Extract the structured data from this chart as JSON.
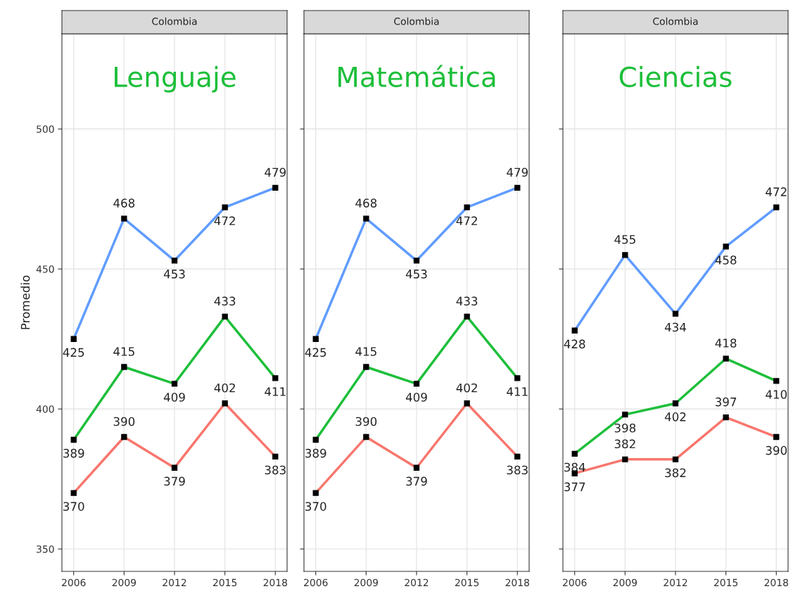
{
  "chart_data": [
    {
      "type": "line",
      "title": "Colombia",
      "subtitle": "Lenguaje",
      "ylabel": "Promedio",
      "x": [
        2006,
        2009,
        2012,
        2015,
        2018
      ],
      "xlim": [
        2005.3,
        2018.7
      ],
      "xticks": [
        2006,
        2009,
        2012,
        2015,
        2018
      ],
      "ylim": [
        342,
        534
      ],
      "yticks": [
        350,
        400,
        450,
        500
      ],
      "grid": true,
      "marker": "square",
      "data_labels": true,
      "series": [
        {
          "color": "#619cff",
          "values": [
            425,
            468,
            453,
            472,
            479
          ]
        },
        {
          "color": "#1dbf3a",
          "values": [
            389,
            415,
            409,
            433,
            411
          ]
        },
        {
          "color": "#f8766d",
          "values": [
            370,
            390,
            379,
            402,
            383
          ]
        }
      ]
    },
    {
      "type": "line",
      "title": "Colombia",
      "subtitle": "Matemática",
      "x": [
        2006,
        2009,
        2012,
        2015,
        2018
      ],
      "xlim": [
        2005.3,
        2018.7
      ],
      "xticks": [
        2006,
        2009,
        2012,
        2015,
        2018
      ],
      "ylim": [
        342,
        534
      ],
      "yticks": [
        350,
        400,
        450,
        500
      ],
      "tick_labels": "x",
      "grid": true,
      "marker": "square",
      "data_labels": true,
      "series": [
        {
          "color": "#619cff",
          "values": [
            425,
            468,
            453,
            472,
            479
          ]
        },
        {
          "color": "#1dbf3a",
          "values": [
            389,
            415,
            409,
            433,
            411
          ]
        },
        {
          "color": "#f8766d",
          "values": [
            370,
            390,
            379,
            402,
            383
          ]
        }
      ]
    },
    {
      "type": "line",
      "title": "Colombia",
      "subtitle": "Ciencias",
      "x": [
        2006,
        2009,
        2012,
        2015,
        2018
      ],
      "xlim": [
        2005.3,
        2018.7
      ],
      "xticks": [
        2006,
        2009,
        2012,
        2015,
        2018
      ],
      "ylim": [
        342,
        534
      ],
      "yticks": [
        350,
        400,
        450,
        500
      ],
      "tick_labels": "x",
      "grid": true,
      "marker": "square",
      "data_labels": true,
      "series": [
        {
          "color": "#619cff",
          "values": [
            428,
            455,
            434,
            458,
            472
          ]
        },
        {
          "color": "#1dbf3a",
          "values": [
            384,
            398,
            402,
            418,
            410
          ]
        },
        {
          "color": "#f8766d",
          "values": [
            377,
            382,
            382,
            397,
            390
          ]
        }
      ]
    }
  ]
}
